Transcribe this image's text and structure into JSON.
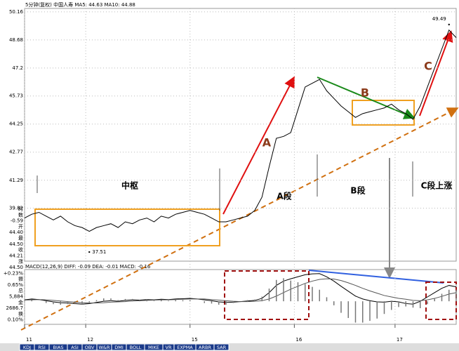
{
  "header": "5分钟(复权)  中国人寿 MA5: 44.63 MA10: 44.88",
  "info": [
    "时",
    "数",
    "-0.59",
    "开",
    "44.40",
    "最",
    "44.50",
    "收",
    "44.21",
    "涨",
    "44.50",
    "+0.23%",
    "振",
    "0.65%",
    "总",
    "5,884",
    "金",
    "2686.7",
    "换",
    "0.10%"
  ],
  "tabs": [
    "KDJ",
    "RSI",
    "BIAS",
    "ASI",
    "OBV",
    "W&R",
    "DMI",
    "BOLL",
    "MIKE",
    "VR",
    "EXPMA",
    "ARBR",
    "SAR"
  ],
  "chart_data": [
    {
      "type": "line",
      "annotations": [
        "中枢",
        "A段",
        "B段",
        "C段上涨",
        "A",
        "B",
        "C"
      ],
      "extremes": [
        {
          "x": 18,
          "value": 37.51
        },
        {
          "x": 118,
          "value": 49.49
        }
      ],
      "x": [
        0,
        2,
        4,
        6,
        8,
        10,
        12,
        14,
        16,
        18,
        20,
        22,
        24,
        26,
        28,
        30,
        32,
        34,
        36,
        38,
        40,
        42,
        44,
        46,
        48,
        50,
        52,
        54,
        56,
        58,
        60,
        62,
        64,
        66,
        68,
        70,
        72,
        74,
        76,
        78,
        80,
        82,
        84,
        86,
        88,
        90,
        92,
        94,
        96,
        98,
        100,
        102,
        104,
        106,
        108,
        110,
        112,
        114,
        116,
        118,
        120
      ],
      "series": [
        {
          "color": "#000000",
          "values": [
            39.3,
            39.5,
            39.6,
            39.4,
            39.2,
            39.4,
            39.1,
            38.9,
            38.8,
            38.6,
            38.8,
            38.9,
            39.0,
            38.8,
            39.1,
            39.0,
            39.2,
            39.3,
            39.1,
            39.4,
            39.3,
            39.5,
            39.6,
            39.7,
            39.6,
            39.5,
            39.3,
            39.1,
            39.1,
            39.2,
            39.3,
            39.4,
            39.7,
            40.4,
            42.0,
            43.5,
            43.6,
            43.8,
            45.0,
            46.2,
            46.4,
            46.6,
            46.0,
            45.6,
            45.2,
            44.9,
            44.6,
            44.8,
            44.9,
            45.0,
            45.1,
            45.3,
            45.0,
            44.8,
            44.5,
            45.2,
            46.2,
            47.2,
            48.2,
            49.2,
            48.8
          ]
        }
      ],
      "xlim": [
        0,
        120
      ],
      "xticks": [
        {
          "value": 0,
          "label": "11"
        },
        {
          "value": 17,
          "label": "12"
        },
        {
          "value": 46,
          "label": "15"
        },
        {
          "value": 75,
          "label": "16"
        },
        {
          "value": 103,
          "label": "17"
        }
      ],
      "ylim": [
        37.03,
        50.34
      ],
      "yticks": [
        50.16,
        48.68,
        47.2,
        45.73,
        44.25,
        42.77,
        41.29,
        39.82
      ],
      "grid": true
    },
    {
      "type": "line",
      "title": "MACD(12,26,9) DIFF: -0.09 DEA: -0.01 MACD: -0.16",
      "x": [
        0,
        2,
        4,
        6,
        8,
        10,
        12,
        14,
        16,
        18,
        20,
        22,
        24,
        26,
        28,
        30,
        32,
        34,
        36,
        38,
        40,
        42,
        44,
        46,
        48,
        50,
        52,
        54,
        56,
        58,
        60,
        62,
        64,
        66,
        68,
        70,
        72,
        74,
        76,
        78,
        80,
        82,
        84,
        86,
        88,
        90,
        92,
        94,
        96,
        98,
        100,
        102,
        104,
        106,
        108,
        110,
        112,
        114,
        116,
        118,
        120
      ],
      "xlim": [
        0,
        120
      ],
      "ylim": [
        -0.8,
        1.1
      ],
      "series": [
        {
          "color": "#000000",
          "values": [
            0.05,
            0.08,
            0.06,
            0.02,
            -0.02,
            -0.05,
            -0.06,
            -0.08,
            -0.1,
            -0.08,
            -0.04,
            0.0,
            0.02,
            0.0,
            0.03,
            0.05,
            0.04,
            0.06,
            0.05,
            0.07,
            0.06,
            0.08,
            0.09,
            0.1,
            0.08,
            0.05,
            0.02,
            -0.02,
            -0.04,
            -0.03,
            -0.01,
            0.01,
            0.03,
            0.1,
            0.3,
            0.55,
            0.7,
            0.78,
            0.85,
            0.92,
            0.95,
            0.96,
            0.85,
            0.7,
            0.52,
            0.35,
            0.18,
            0.08,
            0.02,
            -0.02,
            -0.03,
            0.0,
            -0.02,
            -0.08,
            -0.1,
            0.0,
            0.15,
            0.3,
            0.45,
            0.55,
            0.5
          ]
        },
        {
          "color": "#555555",
          "values": [
            0.04,
            0.05,
            0.06,
            0.05,
            0.03,
            0.01,
            -0.01,
            -0.03,
            -0.05,
            -0.06,
            -0.06,
            -0.05,
            -0.03,
            -0.02,
            -0.01,
            0.01,
            0.02,
            0.03,
            0.04,
            0.05,
            0.05,
            0.06,
            0.07,
            0.08,
            0.08,
            0.08,
            0.06,
            0.04,
            0.02,
            0.0,
            -0.01,
            -0.01,
            0.0,
            0.02,
            0.08,
            0.18,
            0.3,
            0.42,
            0.52,
            0.62,
            0.7,
            0.76,
            0.78,
            0.77,
            0.72,
            0.64,
            0.55,
            0.45,
            0.36,
            0.28,
            0.2,
            0.15,
            0.1,
            0.07,
            0.03,
            0.02,
            0.05,
            0.1,
            0.17,
            0.25,
            0.3
          ]
        },
        {
          "color": "#777777",
          "style": "bar",
          "values": [
            0.02,
            0.06,
            0,
            -0.06,
            -0.1,
            -0.12,
            -0.1,
            -0.1,
            -0.1,
            -0.04,
            0.04,
            0.1,
            0.1,
            0.04,
            0.08,
            0.08,
            0.04,
            0.06,
            0.02,
            0.04,
            0.02,
            0.04,
            0.04,
            0.04,
            0,
            -0.06,
            -0.08,
            -0.12,
            -0.12,
            -0.06,
            0,
            0.04,
            0.06,
            0.16,
            0.44,
            0.74,
            0.8,
            0.72,
            0.66,
            0.6,
            0.5,
            0.4,
            0.14,
            -0.14,
            -0.4,
            -0.58,
            -0.74,
            -0.74,
            -0.68,
            -0.6,
            -0.44,
            -0.3,
            -0.2,
            -0.18,
            -0.22,
            -0.24,
            -0.1,
            0.1,
            0.26,
            0.4,
            0.4
          ]
        }
      ]
    }
  ]
}
